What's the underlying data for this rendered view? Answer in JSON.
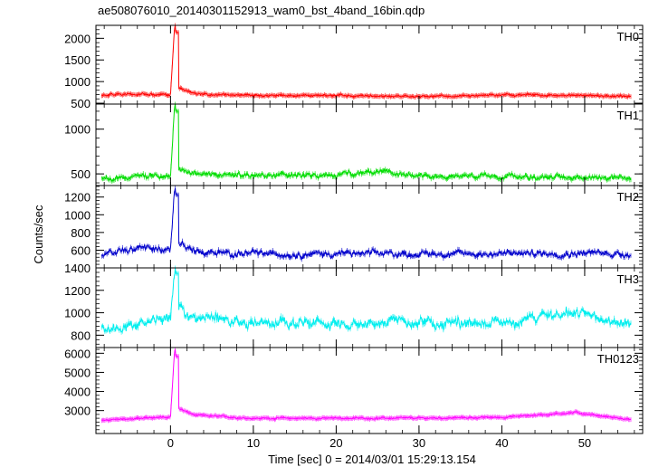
{
  "chart_data": {
    "type": "line",
    "title": "ae508076010_20140301152913_wam0_bst_4band_16bin.qdp",
    "xlabel": "Time [sec] 0 = 2014/03/01 15:29:13.154",
    "ylabel": "Counts/sec",
    "xlim": [
      -9,
      57
    ],
    "xticks": [
      0,
      10,
      20,
      30,
      40,
      50
    ],
    "x_tick_labels": [
      "0",
      "10",
      "20",
      "30",
      "40",
      "50"
    ],
    "grid": false,
    "legend": "none",
    "time_range": [
      -8.3,
      55.6
    ],
    "peak_time": 0.55,
    "panels": [
      {
        "name": "TH0",
        "color": "#ff0000",
        "ylim": [
          480,
          2300
        ],
        "yticks": [
          500,
          1000,
          1500,
          2000
        ],
        "y_tick_labels": [
          "500",
          "1000",
          "1500",
          "2000"
        ],
        "baseline": 680,
        "noise": 30,
        "peak": 2300,
        "keypoints": [
          [
            -8,
            690
          ],
          [
            -4,
            700
          ],
          [
            0,
            690
          ],
          [
            0.5,
            2300
          ],
          [
            1,
            850
          ],
          [
            3,
            720
          ],
          [
            10,
            680
          ],
          [
            20,
            680
          ],
          [
            30,
            660
          ],
          [
            40,
            690
          ],
          [
            50,
            680
          ],
          [
            55,
            660
          ]
        ]
      },
      {
        "name": "TH1",
        "color": "#00dd00",
        "ylim": [
          370,
          1280
        ],
        "yticks": [
          500,
          1000
        ],
        "y_tick_labels": [
          "500",
          "1000"
        ],
        "baseline": 480,
        "noise": 35,
        "peak": 1280,
        "keypoints": [
          [
            -8,
            440
          ],
          [
            -4,
            470
          ],
          [
            0,
            480
          ],
          [
            0.5,
            1280
          ],
          [
            1,
            560
          ],
          [
            3,
            500
          ],
          [
            10,
            480
          ],
          [
            20,
            480
          ],
          [
            25,
            520
          ],
          [
            30,
            470
          ],
          [
            40,
            480
          ],
          [
            50,
            460
          ],
          [
            55,
            450
          ]
        ]
      },
      {
        "name": "TH2",
        "color": "#0000cc",
        "ylim": [
          400,
          1330
        ],
        "yticks": [
          600,
          800,
          1000,
          1200
        ],
        "y_tick_labels": [
          "600",
          "800",
          "1000",
          "1200"
        ],
        "baseline": 560,
        "noise": 45,
        "peak": 1300,
        "keypoints": [
          [
            -8,
            540
          ],
          [
            -4,
            620
          ],
          [
            0,
            600
          ],
          [
            0.5,
            1300
          ],
          [
            1,
            700
          ],
          [
            3,
            580
          ],
          [
            10,
            560
          ],
          [
            20,
            560
          ],
          [
            30,
            560
          ],
          [
            40,
            560
          ],
          [
            50,
            570
          ],
          [
            55,
            560
          ]
        ]
      },
      {
        "name": "TH3",
        "color": "#00eeee",
        "ylim": [
          690,
          1400
        ],
        "yticks": [
          800,
          1000,
          1200,
          1400
        ],
        "y_tick_labels": [
          "800",
          "1000",
          "1200",
          "1400"
        ],
        "baseline": 910,
        "noise": 60,
        "peak": 1400,
        "keypoints": [
          [
            -8,
            860
          ],
          [
            -4,
            900
          ],
          [
            0,
            930
          ],
          [
            0.5,
            1400
          ],
          [
            1,
            1050
          ],
          [
            3,
            960
          ],
          [
            10,
            920
          ],
          [
            20,
            910
          ],
          [
            30,
            910
          ],
          [
            40,
            920
          ],
          [
            48,
            1000
          ],
          [
            55,
            900
          ]
        ]
      },
      {
        "name": "TH0123",
        "color": "#ff00ff",
        "ylim": [
          1800,
          6300
        ],
        "yticks": [
          3000,
          4000,
          5000,
          6000
        ],
        "y_tick_labels": [
          "3000",
          "4000",
          "5000",
          "6000"
        ],
        "baseline": 2600,
        "noise": 55,
        "peak": 6200,
        "keypoints": [
          [
            -8,
            2500
          ],
          [
            -4,
            2600
          ],
          [
            0,
            2650
          ],
          [
            0.5,
            6200
          ],
          [
            1,
            3100
          ],
          [
            3,
            2750
          ],
          [
            10,
            2600
          ],
          [
            20,
            2600
          ],
          [
            30,
            2600
          ],
          [
            40,
            2650
          ],
          [
            49,
            2900
          ],
          [
            55,
            2550
          ]
        ]
      }
    ]
  }
}
